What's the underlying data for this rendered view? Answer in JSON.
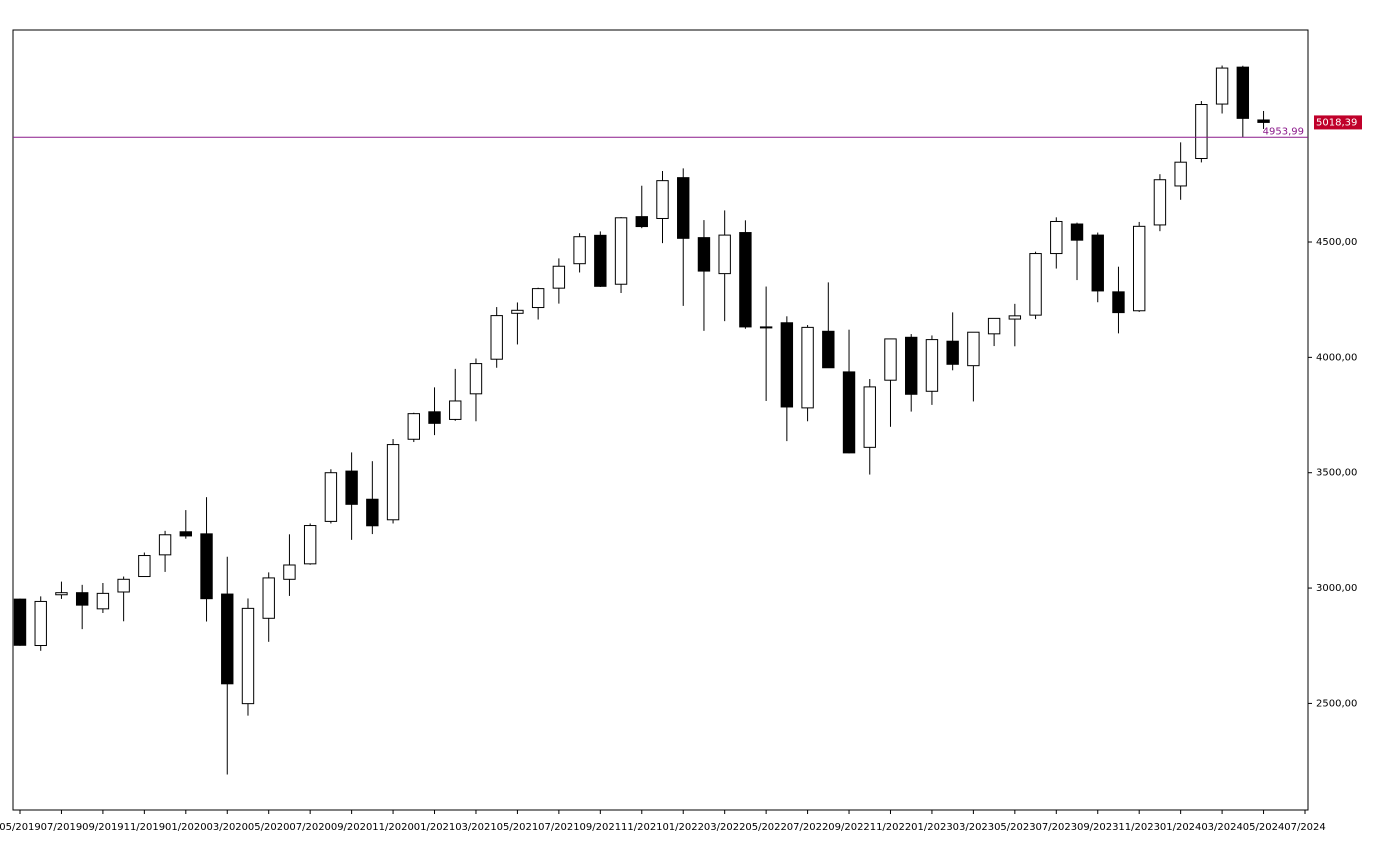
{
  "chart_data": {
    "type": "candlestick",
    "x": [
      "05/2019",
      "06/2019",
      "07/2019",
      "08/2019",
      "09/2019",
      "10/2019",
      "11/2019",
      "12/2019",
      "01/2020",
      "02/2020",
      "03/2020",
      "04/2020",
      "05/2020",
      "06/2020",
      "07/2020",
      "08/2020",
      "09/2020",
      "10/2020",
      "11/2020",
      "12/2020",
      "01/2021",
      "02/2021",
      "03/2021",
      "04/2021",
      "05/2021",
      "06/2021",
      "07/2021",
      "08/2021",
      "09/2021",
      "10/2021",
      "11/2021",
      "12/2021",
      "01/2022",
      "02/2022",
      "03/2022",
      "04/2022",
      "05/2022",
      "06/2022",
      "07/2022",
      "08/2022",
      "09/2022",
      "10/2022",
      "11/2022",
      "12/2022",
      "01/2023",
      "02/2023",
      "03/2023",
      "04/2023",
      "05/2023",
      "06/2023",
      "07/2023",
      "08/2023",
      "09/2023",
      "10/2023",
      "11/2023",
      "12/2023",
      "01/2024",
      "02/2024",
      "03/2024",
      "04/2024",
      "05/2024"
    ],
    "open": [
      2952,
      2751,
      2971,
      2980,
      2910,
      2983,
      3050,
      3144,
      3244,
      3235,
      2974,
      2499,
      2869,
      3038,
      3105,
      3289,
      3507,
      3385,
      3296,
      3645,
      3764,
      3731,
      3842,
      3992,
      4191,
      4216,
      4300,
      4406,
      4529,
      4317,
      4610,
      4602,
      4779,
      4519,
      4363,
      4541,
      4131,
      4150,
      3781,
      4113,
      3937,
      3610,
      3901,
      4087,
      3853,
      4070,
      3964,
      4102,
      4166,
      4183,
      4450,
      4578,
      4530,
      4284,
      4202,
      4574,
      4743,
      4862,
      5098,
      5258,
      5029
    ],
    "high": [
      2954,
      2964,
      3028,
      3014,
      3022,
      3050,
      3154,
      3248,
      3338,
      3394,
      3136,
      2955,
      3068,
      3233,
      3280,
      3515,
      3588,
      3550,
      3646,
      3760,
      3870,
      3950,
      3995,
      4218,
      4238,
      4302,
      4429,
      4538,
      4546,
      4608,
      4744,
      4808,
      4819,
      4595,
      4637,
      4594,
      4307,
      4178,
      4140,
      4325,
      4120,
      3906,
      4080,
      4101,
      4095,
      4195,
      4110,
      4170,
      4232,
      4458,
      4607,
      4584,
      4541,
      4393,
      4587,
      4794,
      4932,
      5111,
      5265,
      5264,
      5068
    ],
    "low": [
      2750,
      2728,
      2953,
      2822,
      2892,
      2856,
      3050,
      3070,
      3214,
      2855,
      2192,
      2447,
      2767,
      2966,
      3101,
      3280,
      3209,
      3234,
      3280,
      3633,
      3663,
      3725,
      3723,
      3955,
      4056,
      4164,
      4233,
      4368,
      4305,
      4279,
      4560,
      4495,
      4223,
      4115,
      4157,
      4124,
      3811,
      3637,
      3723,
      3955,
      3584,
      3492,
      3699,
      3765,
      3794,
      3944,
      3809,
      4049,
      4048,
      4166,
      4385,
      4335,
      4239,
      4104,
      4197,
      4547,
      4683,
      4845,
      5057,
      4953,
      4990
    ],
    "close": [
      2752,
      2942,
      2980,
      2926,
      2977,
      3038,
      3141,
      3231,
      3226,
      2954,
      2585,
      2912,
      3044,
      3100,
      3271,
      3500,
      3363,
      3270,
      3622,
      3756,
      3714,
      3811,
      3973,
      4181,
      4204,
      4298,
      4395,
      4523,
      4308,
      4605,
      4567,
      4766,
      4516,
      4374,
      4530,
      4132,
      4132,
      3785,
      4130,
      3955,
      3586,
      3872,
      4080,
      3840,
      4077,
      3970,
      4109,
      4169,
      4180,
      4450,
      4589,
      4508,
      4288,
      4194,
      4568,
      4770,
      4846,
      5096,
      5254,
      5036,
      5018.39
    ],
    "up_color": "#ffffff",
    "down_color": "#000000",
    "outline_color": "#000000",
    "ylim": [
      2038,
      5419
    ],
    "yticks": [
      {
        "value": 2500,
        "label": "2500,00"
      },
      {
        "value": 3000,
        "label": "3000,00"
      },
      {
        "value": 3500,
        "label": "3500,00"
      },
      {
        "value": 4000,
        "label": "4000,00"
      },
      {
        "value": 4500,
        "label": "4500,00"
      }
    ],
    "xticks": [
      "05/2019",
      "07/2019",
      "09/2019",
      "11/2019",
      "01/2020",
      "03/2020",
      "05/2020",
      "07/2020",
      "09/2020",
      "11/2020",
      "01/2021",
      "03/2021",
      "05/2021",
      "07/2021",
      "09/2021",
      "11/2021",
      "01/2022",
      "03/2022",
      "05/2022",
      "07/2022",
      "09/2022",
      "11/2022",
      "01/2023",
      "03/2023",
      "05/2023",
      "07/2023",
      "09/2023",
      "11/2023",
      "01/2024",
      "03/2024",
      "05/2024",
      "07/2024"
    ],
    "last_price": {
      "value": 5018.39,
      "label": "5018,39",
      "color": "#c0002a"
    },
    "hline": {
      "value": 4953.99,
      "label": "4953,99",
      "color": "#8b1a8b"
    }
  }
}
